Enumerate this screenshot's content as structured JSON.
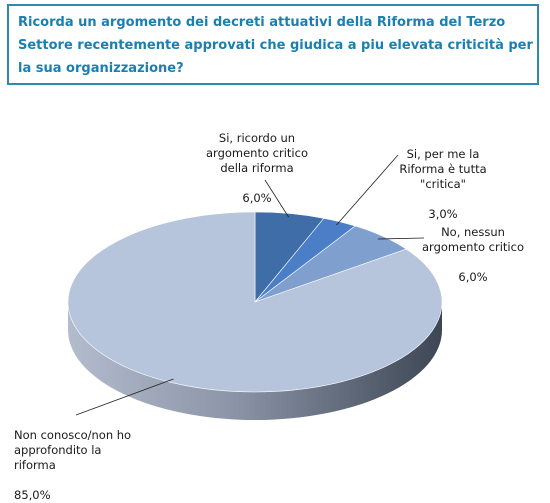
{
  "title": "Ricorda un argomento dei decreti attuativi della Riforma del Terzo Settore recentemente approvati che giudica a piu elevata criticità per la sua organizzazione?",
  "chart_data": {
    "type": "pie",
    "style": "3d",
    "title": "Ricorda un argomento dei decreti attuativi della Riforma del Terzo Settore recentemente approvati che giudica a piu elevata criticità per la sua organizzazione?",
    "slices": [
      {
        "label": "Si, ricordo un argomento critico della riforma",
        "value": 6.0,
        "value_label": "6,0%",
        "color": "#3e6da8"
      },
      {
        "label": "Si, per me la Riforma è tutta \"critica\"",
        "value": 3.0,
        "value_label": "3,0%",
        "color": "#4a7ec6"
      },
      {
        "label": "No, nessun argomento critico",
        "value": 6.0,
        "value_label": "6,0%",
        "color": "#7f9fcf"
      },
      {
        "label": "Non conosco/non ho approfondito la riforma",
        "value": 85.0,
        "value_label": "85,0%",
        "color": "#b6c4dc"
      }
    ]
  }
}
